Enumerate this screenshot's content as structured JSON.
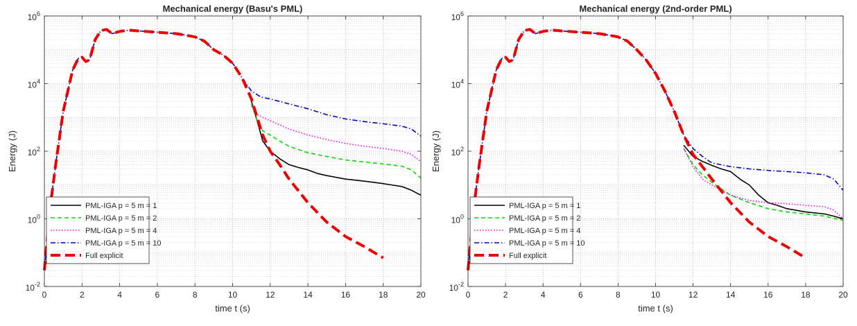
{
  "chart_data": [
    {
      "type": "line",
      "title": "Mechanical energy (Basu's PML)",
      "xlabel": "time t (s)",
      "ylabel": "Energy (J)",
      "xlim": [
        0,
        20
      ],
      "ylim": [
        0.01,
        1000000
      ],
      "yscale": "log",
      "grid": true,
      "minor_grid": true,
      "legend_position": "bottom-left",
      "x_ticks": [
        "0",
        "2",
        "4",
        "6",
        "8",
        "10",
        "12",
        "14",
        "16",
        "18",
        "20"
      ],
      "y_ticks": [
        {
          "base": "10",
          "exp": "-2"
        },
        {
          "base": "10",
          "exp": "0"
        },
        {
          "base": "10",
          "exp": "2"
        },
        {
          "base": "10",
          "exp": "4"
        },
        {
          "base": "10",
          "exp": "6"
        }
      ],
      "series": [
        {
          "name": "PML-IGA p = 5  m = 1",
          "color": "#000000",
          "dash": "solid",
          "x": [
            11.0,
            11.3,
            11.6,
            12.0,
            12.5,
            13.0,
            13.5,
            14.0,
            14.5,
            15.0,
            16.0,
            17.0,
            18.0,
            19.0,
            19.5,
            20.0
          ],
          "y": [
            3000,
            800,
            200,
            100,
            60,
            40,
            33,
            28,
            22,
            19,
            15,
            13,
            11,
            9,
            7,
            5
          ]
        },
        {
          "name": "PML-IGA p = 5  m = 2",
          "color": "#00dd00",
          "dash": "dashed",
          "x": [
            11.0,
            11.3,
            11.6,
            12.0,
            12.5,
            13.0,
            14.0,
            15.0,
            16.0,
            17.0,
            18.0,
            19.0,
            19.5,
            20.0
          ],
          "y": [
            2500,
            800,
            400,
            300,
            200,
            140,
            90,
            70,
            55,
            48,
            42,
            36,
            28,
            16
          ]
        },
        {
          "name": "PML-IGA p = 5  m = 4",
          "color": "#ee00ee",
          "dash": "dotted",
          "x": [
            11.0,
            11.3,
            11.6,
            12.0,
            12.5,
            13.0,
            14.0,
            15.0,
            16.0,
            17.0,
            18.0,
            19.0,
            19.5,
            20.0
          ],
          "y": [
            2200,
            1200,
            1000,
            800,
            600,
            450,
            300,
            220,
            170,
            140,
            120,
            100,
            80,
            50
          ]
        },
        {
          "name": "PML-IGA p = 5  m = 10",
          "color": "#0000cc",
          "dash": "dashdot",
          "x": [
            0.0,
            0.3,
            0.6,
            1.0,
            1.5,
            1.8,
            2.0,
            2.2,
            2.4,
            2.7,
            3.0,
            3.3,
            3.6,
            4.0,
            4.5,
            5.0,
            6.0,
            7.0,
            7.5,
            8.0,
            8.5,
            9.0,
            9.5,
            10.0,
            10.5,
            11.0,
            11.5,
            12.0,
            13.0,
            14.0,
            15.0,
            16.0,
            17.0,
            18.0,
            19.0,
            19.5,
            20.0
          ],
          "y": [
            0.03,
            2,
            40,
            1500,
            25000,
            55000,
            60000,
            45000,
            50000,
            200000,
            370000,
            400000,
            300000,
            350000,
            380000,
            360000,
            330000,
            300000,
            270000,
            240000,
            180000,
            100000,
            70000,
            40000,
            15000,
            6000,
            4000,
            3500,
            2500,
            1800,
            1200,
            900,
            750,
            650,
            550,
            450,
            280
          ]
        },
        {
          "name": "Full explicit",
          "color": "#ee0000",
          "dash": "longdash",
          "x": [
            0.0,
            0.3,
            0.6,
            1.0,
            1.5,
            1.8,
            2.0,
            2.2,
            2.4,
            2.7,
            3.0,
            3.3,
            3.6,
            4.0,
            4.5,
            5.0,
            6.0,
            7.0,
            7.5,
            8.0,
            8.5,
            9.0,
            9.5,
            10.0,
            10.5,
            11.0,
            11.3,
            11.6,
            12.0,
            12.5,
            13.0,
            14.0,
            15.0,
            16.0,
            17.0,
            18.0
          ],
          "y": [
            0.03,
            2,
            40,
            1500,
            25000,
            55000,
            60000,
            45000,
            50000,
            200000,
            370000,
            400000,
            300000,
            350000,
            380000,
            360000,
            330000,
            300000,
            270000,
            240000,
            180000,
            100000,
            70000,
            40000,
            15000,
            3500,
            1000,
            300,
            100,
            40,
            15,
            3,
            0.8,
            0.3,
            0.15,
            0.07
          ]
        }
      ]
    },
    {
      "type": "line",
      "title": "Mechanical energy (2nd-order PML)",
      "xlabel": "time t (s)",
      "ylabel": "Energy (J)",
      "xlim": [
        0,
        20
      ],
      "ylim": [
        0.01,
        1000000
      ],
      "yscale": "log",
      "grid": true,
      "minor_grid": true,
      "legend_position": "bottom-left",
      "x_ticks": [
        "0",
        "2",
        "4",
        "6",
        "8",
        "10",
        "12",
        "14",
        "16",
        "18",
        "20"
      ],
      "y_ticks": [
        {
          "base": "10",
          "exp": "-2"
        },
        {
          "base": "10",
          "exp": "0"
        },
        {
          "base": "10",
          "exp": "2"
        },
        {
          "base": "10",
          "exp": "4"
        },
        {
          "base": "10",
          "exp": "6"
        }
      ],
      "series": [
        {
          "name": "PML-IGA p = 5  m = 1",
          "color": "#000000",
          "dash": "solid",
          "x": [
            11.5,
            12.0,
            12.5,
            13.0,
            13.5,
            14.0,
            14.5,
            15.0,
            15.5,
            16.0,
            16.5,
            17.0,
            18.0,
            19.0,
            19.5,
            20.0
          ],
          "y": [
            150,
            70,
            50,
            38,
            30,
            25,
            15,
            10,
            5,
            3,
            2.5,
            2,
            1.6,
            1.4,
            1.2,
            1.0
          ]
        },
        {
          "name": "PML-IGA p = 5  m = 2",
          "color": "#00dd00",
          "dash": "dashed",
          "x": [
            11.5,
            12.0,
            12.5,
            13.0,
            14.0,
            15.0,
            16.0,
            17.0,
            18.0,
            19.0,
            20.0
          ],
          "y": [
            120,
            40,
            20,
            12,
            5,
            3,
            2,
            1.6,
            1.4,
            1.2,
            0.9
          ]
        },
        {
          "name": "PML-IGA p = 5  m = 4",
          "color": "#ee00ee",
          "dash": "dotted",
          "x": [
            11.5,
            12.0,
            12.5,
            13.0,
            14.0,
            15.0,
            16.0,
            17.0,
            18.0,
            19.0,
            19.5,
            20.0
          ],
          "y": [
            120,
            35,
            15,
            10,
            5,
            3.5,
            3,
            2.8,
            2.5,
            2.3,
            1.8,
            1.0
          ]
        },
        {
          "name": "PML-IGA p = 5  m = 10",
          "color": "#0000cc",
          "dash": "dashdot",
          "x": [
            0.0,
            0.3,
            0.6,
            1.0,
            1.5,
            1.8,
            2.0,
            2.2,
            2.4,
            2.7,
            3.0,
            3.3,
            3.6,
            4.0,
            4.5,
            5.0,
            6.0,
            7.0,
            7.5,
            8.0,
            8.5,
            9.0,
            9.5,
            10.0,
            10.5,
            11.0,
            11.5,
            12.0,
            12.5,
            13.0,
            14.0,
            15.0,
            16.0,
            17.0,
            18.0,
            19.0,
            19.5,
            20.0
          ],
          "y": [
            0.03,
            2,
            40,
            1500,
            25000,
            55000,
            60000,
            45000,
            50000,
            200000,
            370000,
            400000,
            300000,
            350000,
            380000,
            360000,
            330000,
            300000,
            270000,
            240000,
            180000,
            100000,
            50000,
            20000,
            6000,
            1500,
            300,
            120,
            70,
            45,
            35,
            30,
            27,
            25,
            23,
            20,
            15,
            7
          ]
        },
        {
          "name": "Full explicit",
          "color": "#ee0000",
          "dash": "longdash",
          "x": [
            0.0,
            0.3,
            0.6,
            1.0,
            1.5,
            1.8,
            2.0,
            2.2,
            2.4,
            2.7,
            3.0,
            3.3,
            3.6,
            4.0,
            4.5,
            5.0,
            6.0,
            7.0,
            7.5,
            8.0,
            8.5,
            9.0,
            9.5,
            10.0,
            10.5,
            11.0,
            11.5,
            12.0,
            13.0,
            14.0,
            15.0,
            16.0,
            17.0,
            18.0
          ],
          "y": [
            0.03,
            2,
            40,
            1500,
            25000,
            55000,
            60000,
            45000,
            50000,
            200000,
            370000,
            400000,
            300000,
            350000,
            380000,
            360000,
            330000,
            300000,
            270000,
            240000,
            180000,
            100000,
            50000,
            20000,
            6000,
            1500,
            300,
            80,
            15,
            3,
            0.8,
            0.3,
            0.15,
            0.07
          ]
        }
      ]
    }
  ]
}
